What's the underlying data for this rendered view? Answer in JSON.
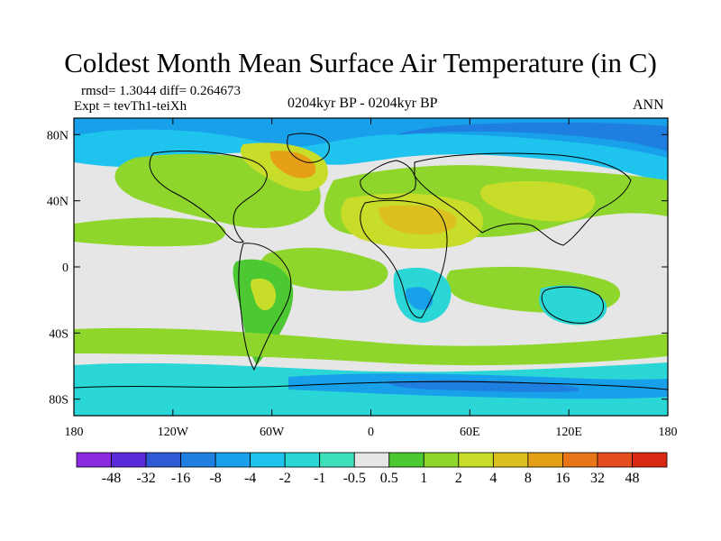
{
  "figure": {
    "title": "Coldest Month Mean Surface Air Temperature (in C)",
    "stats_line": "rmsd= 1.3044  diff= 0.264673",
    "experiment": "Expt = tevTh1-teiXh",
    "period": "0204kyr BP - 0204kyr BP",
    "season": "ANN"
  },
  "axes": {
    "lat_ticks": [
      "80N",
      "40N",
      "0",
      "40S",
      "80S"
    ],
    "lat_values": [
      80,
      40,
      0,
      -40,
      -80
    ],
    "lon_ticks": [
      "180",
      "120W",
      "60W",
      "0",
      "60E",
      "120E",
      "180"
    ],
    "lon_values": [
      -180,
      -120,
      -60,
      0,
      60,
      120,
      180
    ],
    "lat_range": [
      -90,
      90
    ],
    "lon_range": [
      -180,
      180
    ]
  },
  "colorbar": {
    "labels": [
      "-48",
      "-32",
      "-16",
      "-8",
      "-4",
      "-2",
      "-1",
      "-0.5",
      "0.5",
      "1",
      "2",
      "4",
      "8",
      "16",
      "32",
      "48"
    ],
    "colors": [
      "#8a2be2",
      "#5a2bd9",
      "#2e5ad6",
      "#1f7fe0",
      "#19a0ea",
      "#1ec3ee",
      "#2ad6d6",
      "#3ee0bc",
      "#e6e6e6",
      "#4cc832",
      "#8ed62c",
      "#c8dc2a",
      "#dcc020",
      "#e6a018",
      "#e87618",
      "#e44e1e",
      "#d82a12"
    ]
  },
  "colors": {
    "neutral": "#e6e6e6",
    "green": "#4cc832",
    "lightgreen": "#8ed62c",
    "yellowgreen": "#c8dc2a",
    "olive": "#dcc020",
    "orange": "#e6a018",
    "teal": "#2ad6d6",
    "cyan": "#1ec3ee",
    "sky": "#19a0ea",
    "blue": "#1f7fe0",
    "coast": "#000000"
  }
}
